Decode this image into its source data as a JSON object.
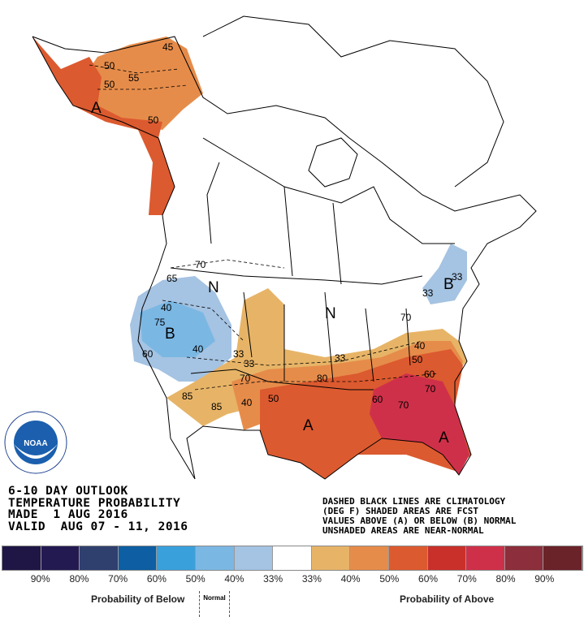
{
  "title_block": {
    "line1": "6-10 DAY OUTLOOK",
    "line2": "TEMPERATURE PROBABILITY",
    "line3": "MADE  1 AUG 2016",
    "line4": "VALID  AUG 07 - 11, 2016"
  },
  "note_block": {
    "line1": "DASHED BLACK LINES ARE CLIMATOLOGY",
    "line2": "(DEG F) SHADED AREAS ARE FCST",
    "line3": "VALUES ABOVE (A) OR BELOW (B) NORMAL",
    "line4": "UNSHADED AREAS ARE NEAR-NORMAL"
  },
  "logo": {
    "text": "NOARA",
    "ring_text": "NATIONAL OCEANIC AND ATMOSPHERIC ADMINISTRATION U.S. DEPARTMENT OF COMMERCE"
  },
  "legend": {
    "colors": [
      "#1f1646",
      "#241a52",
      "#2f3f6e",
      "#0d5ea2",
      "#39a0dc",
      "#7bb7e3",
      "#a5c3e2",
      "#ffffff",
      "#e7b467",
      "#e68c4a",
      "#dc5a2f",
      "#c9302a",
      "#cf3049",
      "#8c2e3b",
      "#6a2329"
    ],
    "percent_labels": [
      "90%",
      "80%",
      "70%",
      "60%",
      "50%",
      "40%",
      "33%",
      "33%",
      "40%",
      "50%",
      "60%",
      "70%",
      "80%",
      "90%"
    ],
    "below_label": "Probability of Below",
    "normal_label": "Normal",
    "above_label": "Probability of Above"
  },
  "map_labels": {
    "A_alaska": "A",
    "A_south": "A",
    "A_southeast": "A",
    "B_west": "B",
    "B_northeast": "B",
    "N_north": "N",
    "N_central": "N",
    "c45": "45",
    "c50a": "50",
    "c50b": "50",
    "c55": "55",
    "c50c": "50",
    "c70": "70",
    "c65": "65",
    "c40a": "40",
    "c75": "75",
    "c40b": "40",
    "c60": "60",
    "c33a": "33",
    "c33b": "33",
    "c70b": "70",
    "c85a": "85",
    "c85b": "85",
    "c40c": "40",
    "c50d": "50",
    "c33c": "33",
    "c80": "80",
    "c60b": "60",
    "c70c": "70",
    "c40d": "40",
    "c50e": "50",
    "c60c": "60",
    "c70d": "70",
    "c33d": "33",
    "c70e": "70",
    "c33e": "33"
  }
}
